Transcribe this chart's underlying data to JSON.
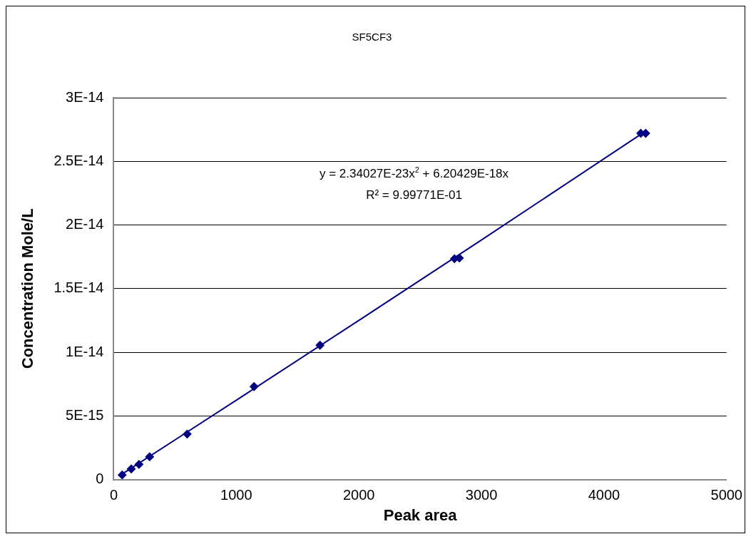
{
  "chart_data": {
    "type": "scatter",
    "title": "SF5CF3",
    "xlabel": "Peak area",
    "ylabel": "Concentration Mole/L",
    "annotations": [
      "y = 2.34027E-23x$^{2}$ + 6.20429E-18x",
      "R² = 9.99771E-01"
    ],
    "series": [
      {
        "type": "scatter",
        "color": "#000080",
        "marker": "diamond",
        "x": [
          69,
          143,
          206,
          293,
          599,
          1145,
          1683,
          2780,
          2820,
          4300,
          4340
        ],
        "values": [
          3.6e-16,
          8.3e-16,
          1.19e-15,
          1.79e-15,
          3.57e-15,
          7.3e-15,
          1.055e-14,
          1.735e-14,
          1.74e-14,
          2.72e-14,
          2.72e-14
        ]
      },
      {
        "type": "line",
        "color": "#000080",
        "marker": "none",
        "line_style": "solid",
        "x": [
          69,
          1000,
          2000,
          3000,
          4340
        ],
        "values": [
          4.3e-16,
          6.23e-15,
          1.25e-14,
          1.882e-14,
          2.737e-14
        ]
      }
    ],
    "xlim": [
      0,
      5000
    ],
    "xticks": [
      0,
      1000,
      2000,
      3000,
      4000,
      5000
    ],
    "ylim": [
      0,
      3e-14
    ],
    "yticks": [
      0,
      {
        "value": 5e-15,
        "label": "5E-15"
      },
      {
        "value": 1e-14,
        "label": "1E-14"
      },
      {
        "value": 1.5e-14,
        "label": "1.5E-14"
      },
      {
        "value": 2e-14,
        "label": "2E-14"
      },
      {
        "value": 2.5e-14,
        "label": "2.5E-14"
      },
      {
        "value": 3e-14,
        "label": "3E-14"
      }
    ],
    "grid": "y",
    "legend": false
  }
}
